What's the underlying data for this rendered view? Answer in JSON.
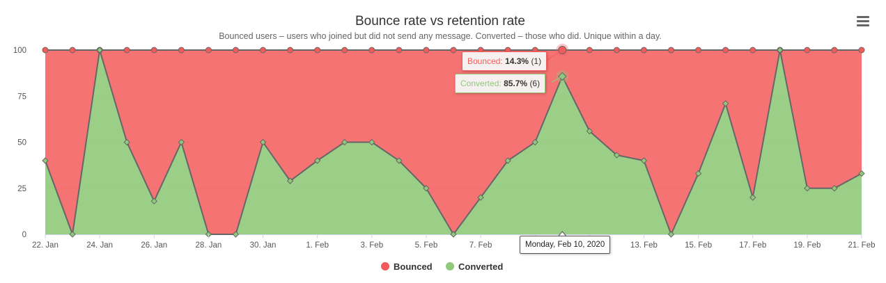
{
  "chart_data": {
    "type": "area",
    "stacked": "percent",
    "title": "Bounce rate vs retention rate",
    "subtitle": "Bounced users – users who joined but did not send any message. Converted – those who did. Unique within a day.",
    "x": [
      "22. Jan",
      "23. Jan",
      "24. Jan",
      "25. Jan",
      "26. Jan",
      "27. Jan",
      "28. Jan",
      "29. Jan",
      "30. Jan",
      "31. Jan",
      "1. Feb",
      "2. Feb",
      "3. Feb",
      "4. Feb",
      "5. Feb",
      "6. Feb",
      "7. Feb",
      "8. Feb",
      "9. Feb",
      "10. Feb",
      "11. Feb",
      "12. Feb",
      "13. Feb",
      "14. Feb",
      "15. Feb",
      "16. Feb",
      "17. Feb",
      "18. Feb",
      "19. Feb",
      "20. Feb",
      "21. Feb"
    ],
    "x_tick_labels": [
      "22. Jan",
      "24. Jan",
      "26. Jan",
      "28. Jan",
      "30. Jan",
      "1. Feb",
      "3. Feb",
      "5. Feb",
      "7. Feb",
      "9. Feb",
      "11. Feb",
      "13. Feb",
      "15. Feb",
      "17. Feb",
      "19. Feb",
      "21. Feb"
    ],
    "y_ticks": [
      "0",
      "25",
      "50",
      "75",
      "100"
    ],
    "ylim": [
      0,
      100
    ],
    "grid": "horizontal",
    "legend_position": "bottom-center",
    "series": [
      {
        "name": "Bounced",
        "color": "#f45b5b",
        "values": [
          60,
          100,
          0,
          50,
          82,
          50,
          100,
          100,
          50,
          71,
          60,
          50,
          50,
          60,
          75,
          100,
          80,
          60,
          50,
          14.3,
          44,
          57,
          60,
          100,
          67,
          29,
          80,
          0,
          75,
          75,
          67
        ]
      },
      {
        "name": "Converted",
        "color": "#90c97a",
        "values": [
          40,
          0,
          100,
          50,
          18,
          50,
          0,
          0,
          50,
          29,
          40,
          50,
          50,
          40,
          25,
          0,
          20,
          40,
          50,
          85.7,
          56,
          43,
          40,
          0,
          33,
          71,
          20,
          100,
          25,
          25,
          33
        ]
      }
    ],
    "tooltip": {
      "index": 19,
      "date_label": "Monday, Feb 10, 2020",
      "bounced": {
        "label": "Bounced",
        "value": "14.3%",
        "count": "(1)"
      },
      "converted": {
        "label": "Converted",
        "value": "85.7%",
        "count": "(6)"
      }
    }
  },
  "colors": {
    "bounced": "#f45b5b",
    "converted": "#90c97a",
    "line": "#666666"
  },
  "menu": {
    "icon": "hamburger-menu-icon"
  }
}
